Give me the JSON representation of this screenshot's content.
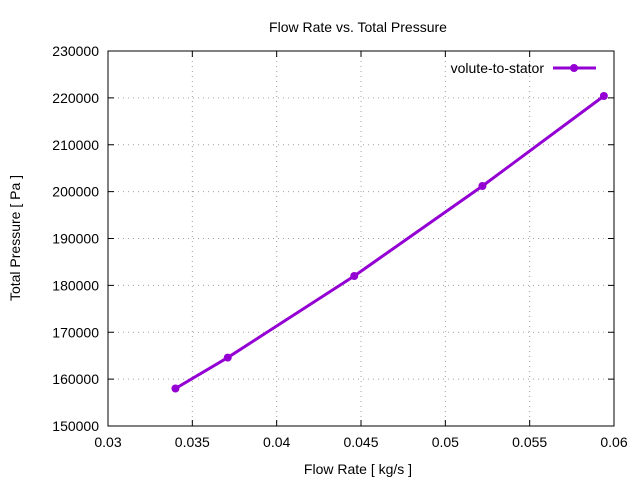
{
  "chart_data": {
    "type": "line",
    "title": "Flow Rate vs. Total Pressure",
    "xlabel": "Flow Rate [ kg/s ]",
    "ylabel": "Total Pressure [ Pa ]",
    "xlim": [
      0.03,
      0.06
    ],
    "ylim": [
      150000,
      230000
    ],
    "xticks": [
      0.03,
      0.035,
      0.04,
      0.045,
      0.05,
      0.055,
      0.06
    ],
    "xtick_labels": [
      "0.03",
      "0.035",
      "0.04",
      "0.045",
      "0.05",
      "0.055",
      "0.06"
    ],
    "yticks": [
      150000,
      160000,
      170000,
      180000,
      190000,
      200000,
      210000,
      220000,
      230000
    ],
    "ytick_labels": [
      "150000",
      "160000",
      "170000",
      "180000",
      "190000",
      "200000",
      "210000",
      "220000",
      "230000"
    ],
    "grid": true,
    "legend_position": "top-right",
    "series": [
      {
        "name": "volute-to-stator",
        "color": "#9400d3",
        "x": [
          0.034,
          0.0371,
          0.0446,
          0.0522,
          0.0594
        ],
        "y": [
          158000,
          164600,
          182000,
          201200,
          220400
        ]
      }
    ]
  }
}
